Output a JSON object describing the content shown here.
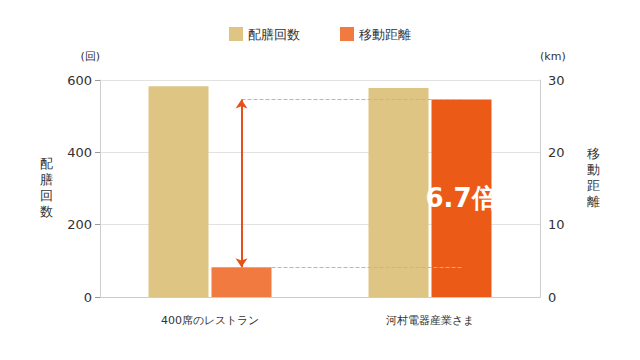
{
  "chart_data": {
    "type": "bar",
    "categories": [
      "400席のレストラン",
      "河村電器産業さま"
    ],
    "series": [
      {
        "name": "配膳回数",
        "color": "#dfc584",
        "values": [
          583,
          578
        ]
      },
      {
        "name": "移動距離",
        "axis": "y2",
        "colors": [
          "#f07a40",
          "#ec5a18"
        ],
        "values": [
          4.1,
          27.3
        ]
      }
    ],
    "ylim": [
      0,
      600
    ],
    "yticks": [
      0,
      200,
      400,
      600
    ],
    "y2lim": [
      0,
      30
    ],
    "y2ticks": [
      0,
      10,
      20,
      30
    ],
    "ylabel": "配膳回数",
    "y2label": "移動距離",
    "yunit": "(回)",
    "y2unit": "(km)",
    "annotation": {
      "text": "6.7倍",
      "category": "河村電器産業さま"
    },
    "grid": true,
    "legend": "top"
  }
}
